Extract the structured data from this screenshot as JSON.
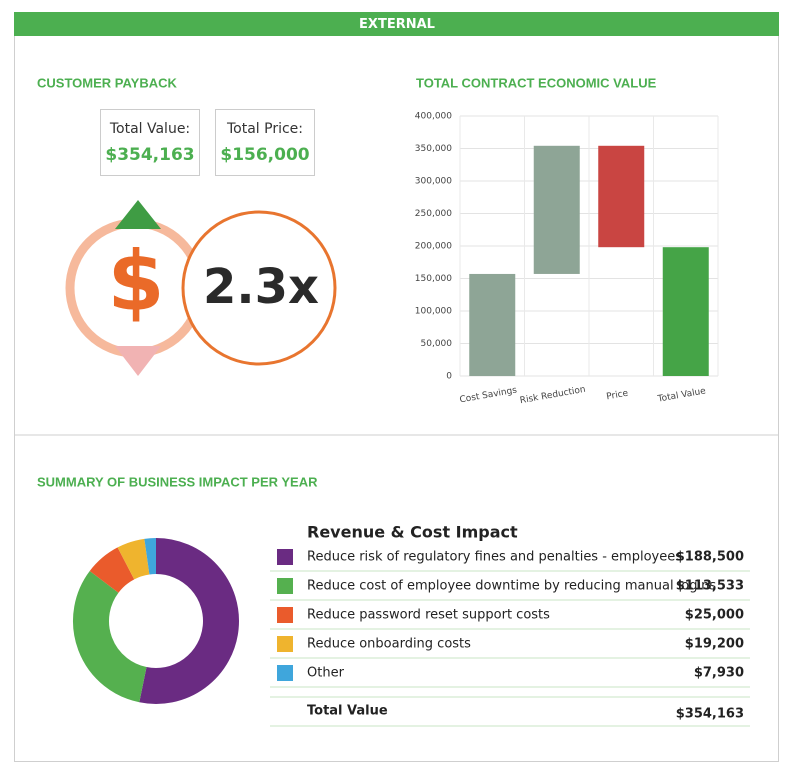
{
  "header": "EXTERNAL",
  "payback": {
    "title": "CUSTOMER PAYBACK",
    "total_value_label": "Total Value:",
    "total_value": "$354,163",
    "total_price_label": "Total Price:",
    "total_price": "$156,000",
    "multiple": "2.3x"
  },
  "chart_data": [
    {
      "type": "waterfall",
      "title": "TOTAL CONTRACT ECONOMIC VALUE",
      "categories": [
        "Cost Savings",
        "Risk Reduction",
        "Price",
        "Total Value"
      ],
      "values": [
        157000,
        197163,
        -156000,
        198163
      ],
      "measure": [
        "relative",
        "relative",
        "relative",
        "total"
      ],
      "colors": [
        "#8ea596",
        "#8ea596",
        "#c94542",
        "#45a447"
      ],
      "ylim": [
        0,
        400000
      ],
      "yticks": [
        0,
        {
          "value": 50000,
          "label": "50,000"
        },
        {
          "value": 100000,
          "label": "100,000"
        },
        {
          "value": 150000,
          "label": "150,000"
        },
        {
          "value": 200000,
          "label": "200,000"
        },
        {
          "value": 250000,
          "label": "250,000"
        },
        {
          "value": 300000,
          "label": "300,000"
        },
        {
          "value": 350000,
          "label": "350,000"
        },
        {
          "value": 400000,
          "label": "400,000"
        }
      ],
      "grid": true
    },
    {
      "type": "donut",
      "title": "SUMMARY OF BUSINESS IMPACT PER YEAR",
      "legend_title": "Revenue & Cost Impact",
      "categories": [
        "Reduce risk of regulatory fines and penalties - employees",
        "Reduce cost of employee downtime by reducing manual logins",
        "Reduce password reset support costs",
        "Reduce onboarding costs",
        "Other"
      ],
      "values": [
        188500,
        113533,
        25000,
        19200,
        7930
      ],
      "value_labels": [
        "$188,500",
        "$113,533",
        "$25,000",
        "$19,200",
        "$7,930"
      ],
      "colors": [
        "#6a2b82",
        "#55b04f",
        "#ea5b2c",
        "#efb42e",
        "#3fa6dc"
      ],
      "total_label": "Total Value",
      "total": "$354,163"
    }
  ]
}
